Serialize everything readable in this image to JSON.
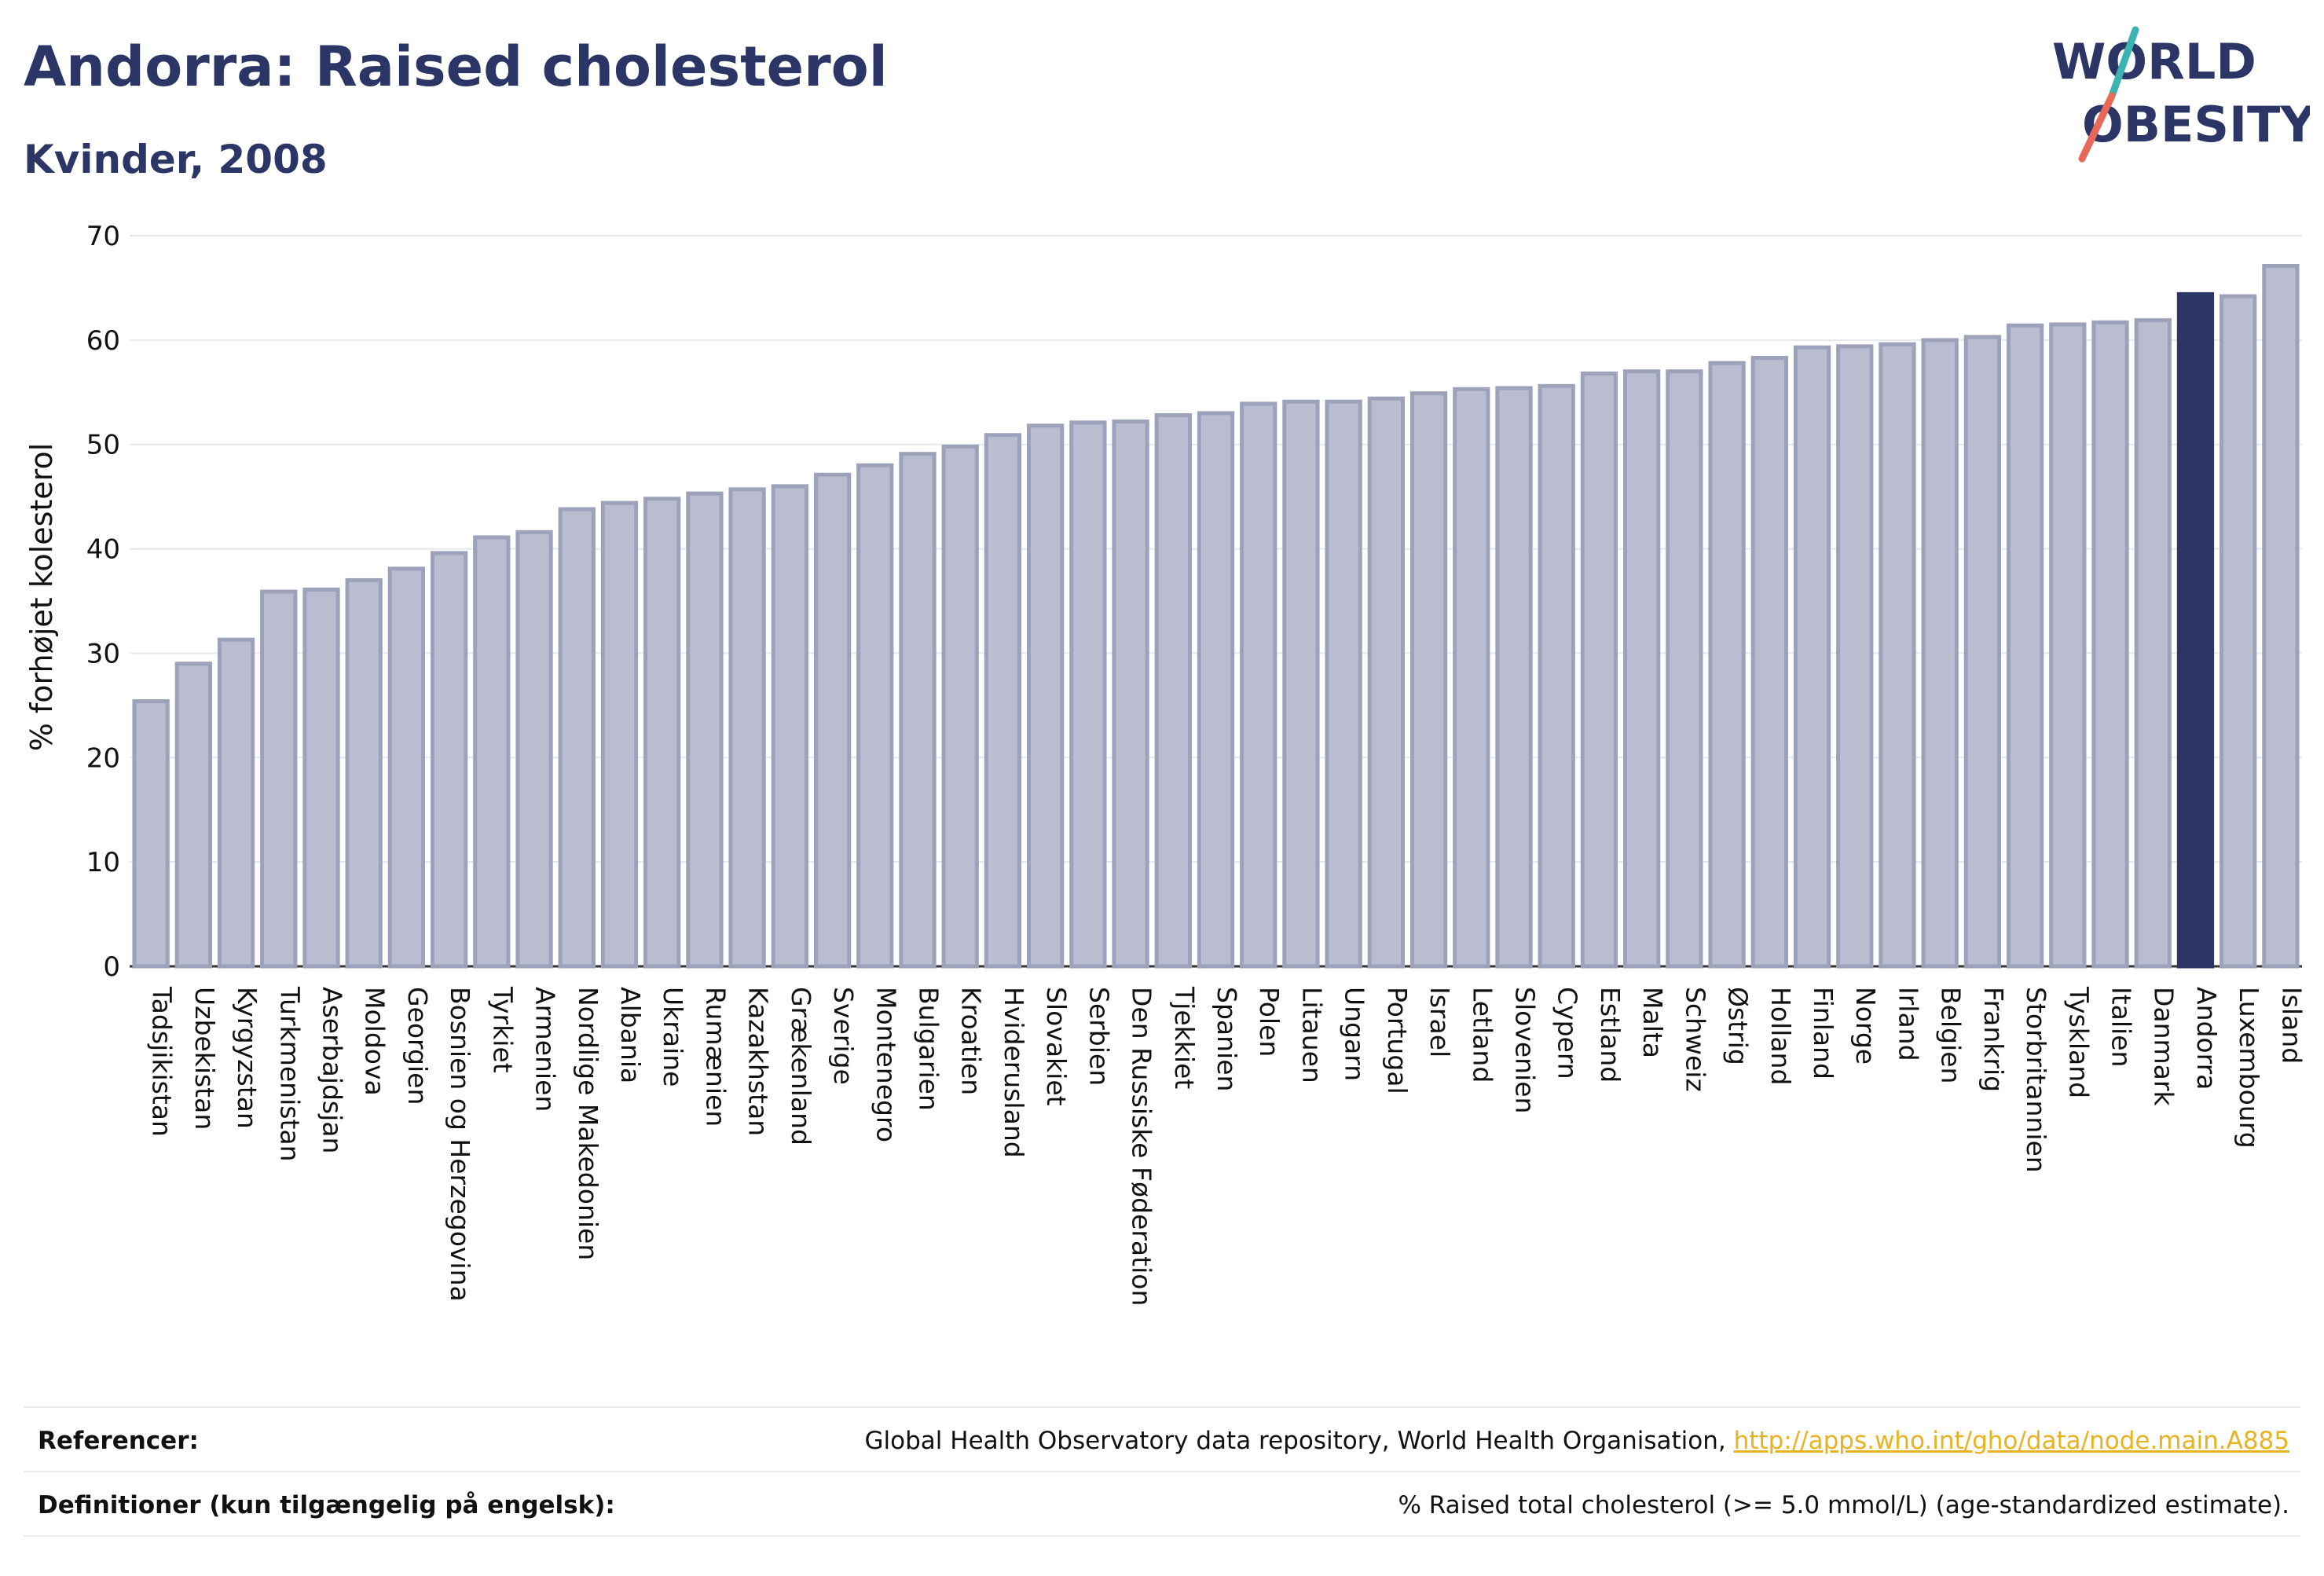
{
  "header": {
    "title": "Andorra: Raised cholesterol",
    "subtitle": "Kvinder, 2008"
  },
  "logo": {
    "line1": "WORLD",
    "line2": "OBESITY",
    "colors": {
      "text": "#2b3566",
      "slash_top": "#3bb3b0",
      "slash_bottom": "#e8685a"
    }
  },
  "chart_data": {
    "type": "bar",
    "ylabel": "% forhøjet kolesterol",
    "ylim": [
      0,
      70
    ],
    "yticks": [
      0,
      10,
      20,
      30,
      40,
      50,
      60,
      70
    ],
    "grid": true,
    "highlight": "Andorra",
    "colors": {
      "bar": "#b9bdcf",
      "bar_border": "#9ca2ba",
      "highlight": "#2b3566"
    },
    "categories": [
      "Tadsjikistan",
      "Uzbekistan",
      "Kyrgyzstan",
      "Turkmenistan",
      "Aserbajdsjan",
      "Moldova",
      "Georgien",
      "Bosnien og Herzegovina",
      "Tyrkiet",
      "Armenien",
      "Nordlige Makedonien",
      "Albania",
      "Ukraine",
      "Rumænien",
      "Kazakhstan",
      "Grækenland",
      "Sverige",
      "Montenegro",
      "Bulgarien",
      "Kroatien",
      "Hviderusland",
      "Slovakiet",
      "Serbien",
      "Den Russiske Føderation",
      "Tjekkiet",
      "Spanien",
      "Polen",
      "Litauen",
      "Ungarn",
      "Portugal",
      "Israel",
      "Letland",
      "Slovenien",
      "Cypern",
      "Estland",
      "Malta",
      "Schweiz",
      "Østrig",
      "Holland",
      "Finland",
      "Norge",
      "Irland",
      "Belgien",
      "Frankrig",
      "Storbritannien",
      "Tyskland",
      "Italien",
      "Danmark",
      "Andorra",
      "Luxembourg",
      "Island"
    ],
    "values": [
      25.4,
      29.0,
      31.3,
      35.9,
      36.1,
      37.0,
      38.1,
      39.6,
      41.1,
      41.6,
      43.8,
      44.4,
      44.8,
      45.3,
      45.7,
      46.0,
      47.1,
      48.0,
      49.1,
      49.8,
      50.9,
      51.8,
      52.1,
      52.2,
      52.8,
      53.0,
      53.9,
      54.1,
      54.1,
      54.4,
      54.9,
      55.3,
      55.4,
      55.6,
      56.8,
      57.0,
      57.0,
      57.8,
      58.3,
      59.3,
      59.4,
      59.6,
      60.0,
      60.3,
      61.4,
      61.5,
      61.7,
      61.9,
      64.4,
      64.2,
      67.1
    ]
  },
  "footer": {
    "references_label": "Referencer:",
    "references_text": "Global Health Observatory data repository, World Health Organisation, ",
    "references_link": "http://apps.who.int/gho/data/node.main.A885",
    "definitions_label": "Definitioner (kun tilgængelig på engelsk):",
    "definitions_text": "% Raised total cholesterol (>= 5.0 mmol/L) (age-standardized estimate)."
  }
}
